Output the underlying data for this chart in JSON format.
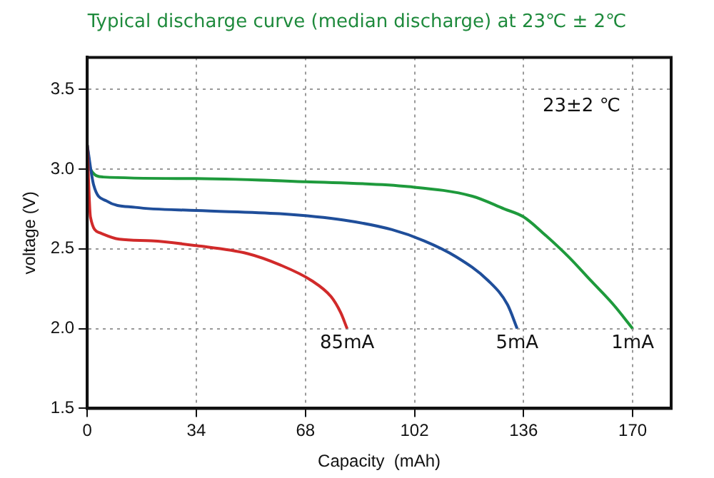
{
  "chart_data": {
    "type": "line",
    "title": "Typical discharge curve (median discharge) at 23℃ ± 2℃",
    "xlabel": "Capacity  (mAh)",
    "ylabel": "voltage (V)",
    "annotations": [
      "23±2 ℃"
    ],
    "series": [
      {
        "name": "85mA",
        "color": "#d12a2a",
        "x": [
          0,
          1,
          4,
          10,
          20,
          34,
          50,
          60,
          70,
          76,
          79,
          81
        ],
        "values": [
          3.15,
          2.7,
          2.6,
          2.56,
          2.55,
          2.52,
          2.47,
          2.4,
          2.3,
          2.2,
          2.1,
          2.0
        ]
      },
      {
        "name": "5mA",
        "color": "#1f4e9a",
        "x": [
          0,
          2,
          6,
          15,
          34,
          60,
          80,
          95,
          105,
          115,
          125,
          131,
          134
        ],
        "values": [
          3.15,
          2.9,
          2.8,
          2.76,
          2.74,
          2.72,
          2.68,
          2.62,
          2.55,
          2.45,
          2.3,
          2.15,
          2.0
        ]
      },
      {
        "name": "1mA",
        "color": "#1e9a3c",
        "x": [
          0,
          1,
          5,
          34,
          68,
          100,
          120,
          130,
          136,
          142,
          150,
          157,
          164,
          170
        ],
        "values": [
          3.15,
          3.0,
          2.95,
          2.94,
          2.92,
          2.89,
          2.83,
          2.75,
          2.7,
          2.6,
          2.45,
          2.3,
          2.15,
          2.0
        ]
      }
    ],
    "xlim": [
      0,
      182
    ],
    "xticks": [
      0,
      34,
      68,
      102,
      136,
      170
    ],
    "ylim": [
      1.5,
      3.7
    ],
    "yticks": [
      1.5,
      {
        "value": 2,
        "label": "2.0"
      },
      2.5,
      {
        "value": 3,
        "label": "3.0"
      },
      3.5
    ],
    "grid": true,
    "legend": false,
    "marker": "none",
    "line_style": "solid"
  }
}
